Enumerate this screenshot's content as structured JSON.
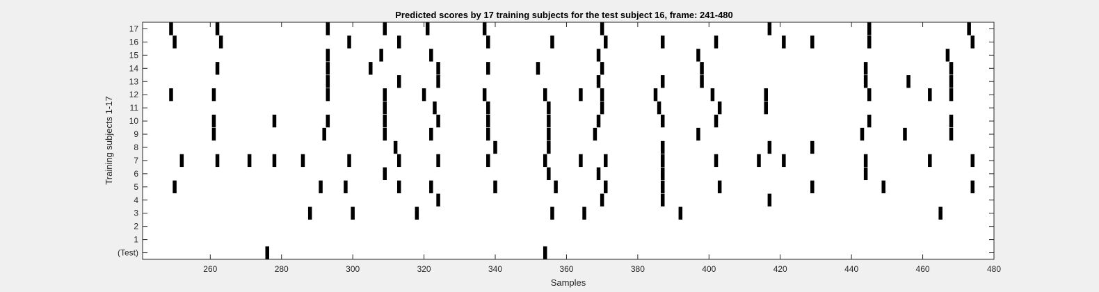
{
  "chart_data": {
    "type": "heatmap",
    "title": "Predicted scores by 17 training subjects for the test subject 16, frame: 241-480",
    "xlabel": "Samples",
    "ylabel": "Training subjects 1-17",
    "xlim": [
      241,
      480
    ],
    "xticks": [
      260,
      280,
      300,
      320,
      340,
      360,
      380,
      400,
      420,
      440,
      460,
      480
    ],
    "xtick_labels": [
      "260",
      "280",
      "300",
      "320",
      "340",
      "360",
      "380",
      "400",
      "420",
      "440",
      "460",
      "480"
    ],
    "ytick_labels": [
      "(Test)",
      "1",
      "2",
      "3",
      "4",
      "5",
      "6",
      "7",
      "8",
      "9",
      "10",
      "11",
      "12",
      "13",
      "14",
      "15",
      "16",
      "17"
    ],
    "grid": false,
    "mark_color": "#000000",
    "rows": [
      {
        "label": "17",
        "events": [
          249,
          262,
          293,
          309,
          321,
          337,
          370,
          417,
          445,
          473
        ]
      },
      {
        "label": "16",
        "events": [
          250,
          263,
          299,
          313,
          338,
          356,
          371,
          387,
          402,
          421,
          429,
          445,
          474
        ]
      },
      {
        "label": "15",
        "events": [
          293,
          308,
          322,
          369,
          397,
          467
        ]
      },
      {
        "label": "14",
        "events": [
          262,
          293,
          305,
          324,
          338,
          352,
          370,
          398,
          444,
          468
        ]
      },
      {
        "label": "13",
        "events": [
          293,
          313,
          324,
          369,
          387,
          398,
          444,
          456,
          468
        ]
      },
      {
        "label": "12",
        "events": [
          249,
          261,
          293,
          309,
          320,
          337,
          354,
          364,
          370,
          385,
          401,
          416,
          445,
          462,
          468
        ]
      },
      {
        "label": "11",
        "events": [
          309,
          323,
          338,
          355,
          370,
          386,
          403,
          416
        ]
      },
      {
        "label": "10",
        "events": [
          261,
          278,
          293,
          309,
          324,
          338,
          355,
          369,
          387,
          402,
          445,
          468
        ]
      },
      {
        "label": "9",
        "events": [
          261,
          292,
          309,
          322,
          338,
          355,
          368,
          397,
          443,
          455,
          468
        ]
      },
      {
        "label": "8",
        "events": [
          312,
          340,
          355,
          387,
          417,
          429
        ]
      },
      {
        "label": "7",
        "events": [
          252,
          262,
          271,
          278,
          286,
          299,
          313,
          324,
          338,
          354,
          364,
          371,
          387,
          402,
          414,
          421,
          444,
          462,
          474
        ]
      },
      {
        "label": "6",
        "events": [
          309,
          355,
          369,
          387,
          444
        ]
      },
      {
        "label": "5",
        "events": [
          250,
          291,
          298,
          313,
          322,
          340,
          357,
          371,
          387,
          403,
          429,
          449,
          474
        ]
      },
      {
        "label": "4",
        "events": [
          324,
          370,
          387,
          417
        ]
      },
      {
        "label": "3",
        "events": [
          288,
          300,
          318,
          356,
          365,
          392,
          465
        ]
      },
      {
        "label": "2",
        "events": []
      },
      {
        "label": "1",
        "events": []
      },
      {
        "label": "(Test)",
        "events": [
          276,
          354
        ]
      }
    ]
  }
}
